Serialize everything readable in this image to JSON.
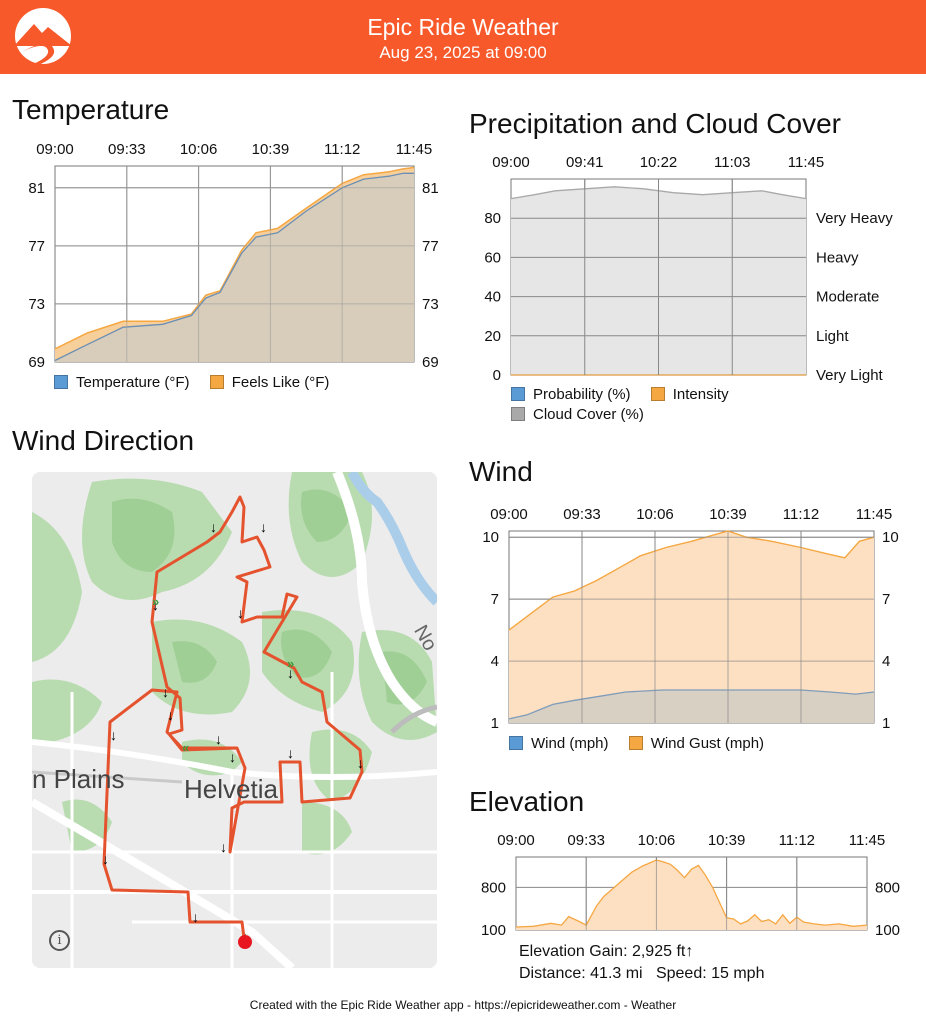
{
  "header": {
    "title": "Epic Ride Weather",
    "subtitle": "Aug 23, 2025 at 09:00",
    "logo_icon": "mountain-road-logo-icon",
    "bg_color": "#f7592a"
  },
  "temperature": {
    "title": "Temperature",
    "legend": {
      "temperature": "Temperature (°F)",
      "feels_like": "Feels Like (°F)"
    },
    "colors": {
      "temperature": "#5b9bd5",
      "feels_like": "#f5a742"
    },
    "chart_data": {
      "type": "area",
      "x_ticks": [
        "09:00",
        "09:33",
        "10:06",
        "10:39",
        "11:12",
        "11:45"
      ],
      "y_ticks": [
        69,
        73,
        77,
        81
      ],
      "ylim": [
        69,
        82.5
      ],
      "series": [
        {
          "name": "Temperature (°F)",
          "x": [
            0,
            0.09,
            0.19,
            0.3,
            0.38,
            0.42,
            0.46,
            0.52,
            0.56,
            0.62,
            0.7,
            0.8,
            0.86,
            0.93,
            0.97,
            1.0
          ],
          "values": [
            69.1,
            70.2,
            71.4,
            71.6,
            72.2,
            73.4,
            73.8,
            76.5,
            77.6,
            77.9,
            79.4,
            81.0,
            81.6,
            81.8,
            82.0,
            82.0
          ]
        },
        {
          "name": "Feels Like (°F)",
          "x": [
            0,
            0.09,
            0.19,
            0.3,
            0.38,
            0.42,
            0.46,
            0.52,
            0.56,
            0.62,
            0.7,
            0.8,
            0.86,
            0.93,
            0.97,
            1.0
          ],
          "values": [
            69.9,
            71.0,
            71.8,
            71.8,
            72.3,
            73.6,
            73.9,
            76.7,
            77.9,
            78.2,
            79.6,
            81.3,
            81.9,
            82.1,
            82.3,
            82.4
          ]
        }
      ]
    }
  },
  "precip": {
    "title": "Precipitation and Cloud Cover",
    "legend": {
      "probability": "Probability (%)",
      "intensity": "Intensity",
      "cloud": "Cloud Cover (%)"
    },
    "colors": {
      "probability": "#5b9bd5",
      "intensity": "#f5a742",
      "cloud": "#a9a9a9"
    },
    "chart_data": {
      "type": "area",
      "x_ticks": [
        "09:00",
        "09:41",
        "10:22",
        "11:03",
        "11:45"
      ],
      "y_ticks": [
        0,
        20,
        40,
        60,
        80
      ],
      "right_labels": [
        "Very Light",
        "Light",
        "Moderate",
        "Heavy",
        "Very Heavy"
      ],
      "ylim": [
        0,
        100
      ],
      "series": [
        {
          "name": "Cloud Cover (%)",
          "x": [
            0,
            0.08,
            0.15,
            0.25,
            0.35,
            0.45,
            0.55,
            0.65,
            0.75,
            0.85,
            0.92,
            1.0
          ],
          "values": [
            90,
            92,
            94,
            95,
            96,
            95,
            93,
            92,
            93,
            94,
            92,
            90
          ]
        },
        {
          "name": "Probability (%)",
          "x": [
            0,
            1.0
          ],
          "values": [
            0,
            0
          ]
        },
        {
          "name": "Intensity",
          "x": [
            0,
            1.0
          ],
          "values": [
            0,
            0
          ]
        }
      ]
    }
  },
  "wind_direction": {
    "title": "Wind Direction",
    "map_labels": {
      "plains": "n Plains",
      "town": "Helvetia",
      "road": "No"
    },
    "info_icon": "info-icon",
    "route_color": "#e4532e",
    "water_color": "#aacdea"
  },
  "wind": {
    "title": "Wind",
    "legend": {
      "wind": "Wind (mph)",
      "gust": "Wind Gust (mph)"
    },
    "colors": {
      "wind": "#5b9bd5",
      "gust": "#f5a742"
    },
    "chart_data": {
      "type": "area",
      "x_ticks": [
        "09:00",
        "09:33",
        "10:06",
        "10:39",
        "11:12",
        "11:45"
      ],
      "y_ticks": [
        1,
        4,
        7,
        10
      ],
      "ylim": [
        1,
        10.3
      ],
      "series": [
        {
          "name": "Wind (mph)",
          "x": [
            0,
            0.05,
            0.12,
            0.18,
            0.25,
            0.32,
            0.42,
            0.55,
            0.62,
            0.72,
            0.8,
            0.88,
            0.95,
            1.0
          ],
          "values": [
            1.2,
            1.4,
            1.9,
            2.1,
            2.3,
            2.5,
            2.6,
            2.6,
            2.6,
            2.6,
            2.6,
            2.5,
            2.4,
            2.5
          ]
        },
        {
          "name": "Wind Gust (mph)",
          "x": [
            0,
            0.06,
            0.12,
            0.18,
            0.24,
            0.3,
            0.36,
            0.43,
            0.5,
            0.56,
            0.6,
            0.65,
            0.72,
            0.8,
            0.87,
            0.92,
            0.96,
            1.0
          ],
          "values": [
            5.5,
            6.3,
            7.1,
            7.4,
            7.9,
            8.5,
            9.1,
            9.5,
            9.8,
            10.1,
            10.3,
            10.0,
            9.8,
            9.5,
            9.2,
            9.0,
            9.8,
            10.0
          ]
        }
      ]
    }
  },
  "elevation": {
    "title": "Elevation",
    "color": "#f5a742",
    "chart_data": {
      "type": "area",
      "x_ticks": [
        "09:00",
        "09:33",
        "10:06",
        "10:39",
        "11:12",
        "11:45"
      ],
      "y_ticks": [
        100,
        800
      ],
      "ylim": [
        100,
        1300
      ],
      "series": [
        {
          "name": "Elevation",
          "x": [
            0,
            0.05,
            0.1,
            0.13,
            0.15,
            0.18,
            0.2,
            0.23,
            0.25,
            0.28,
            0.3,
            0.33,
            0.36,
            0.4,
            0.42,
            0.44,
            0.46,
            0.48,
            0.5,
            0.52,
            0.54,
            0.56,
            0.58,
            0.6,
            0.62,
            0.64,
            0.66,
            0.68,
            0.7,
            0.72,
            0.74,
            0.76,
            0.78,
            0.8,
            0.82,
            0.85,
            0.88,
            0.92,
            0.96,
            1.0
          ],
          "values": [
            150,
            160,
            210,
            180,
            320,
            240,
            180,
            500,
            650,
            800,
            900,
            1050,
            1150,
            1250,
            1220,
            1180,
            1080,
            960,
            1100,
            1160,
            1000,
            800,
            550,
            300,
            280,
            200,
            250,
            350,
            240,
            270,
            200,
            350,
            210,
            310,
            230,
            200,
            180,
            200,
            160,
            180
          ]
        }
      ]
    },
    "stats": {
      "gain": "Elevation Gain: 2,925 ft↑",
      "distance": "Distance: 41.3 mi",
      "speed": "Speed: 15 mph"
    }
  },
  "footer": "Created with the Epic Ride Weather app - https://epicrideweather.com -  Weather",
  "footer_icon": "apple-icon"
}
